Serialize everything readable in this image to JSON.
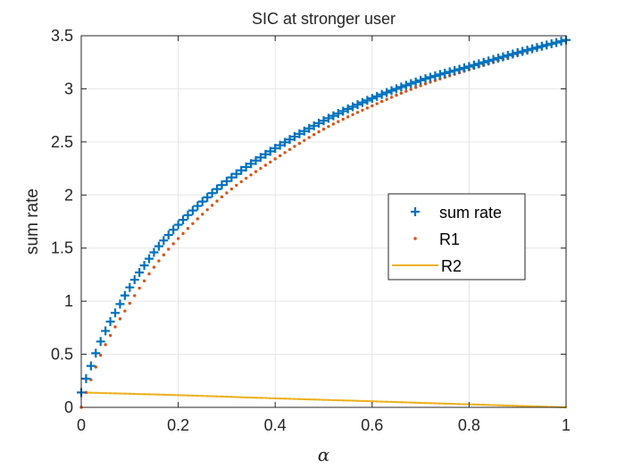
{
  "chart_data": {
    "type": "line",
    "title": "SIC at stronger user",
    "xlabel": "α",
    "ylabel": "sum rate",
    "xlim": [
      0,
      1
    ],
    "ylim": [
      0,
      3.5
    ],
    "xticks": [
      "0",
      "0.2",
      "0.4",
      "0.6",
      "0.8",
      "1"
    ],
    "yticks": [
      "0",
      "0.5",
      "1",
      "1.5",
      "2",
      "2.5",
      "3",
      "3.5"
    ],
    "grid": true,
    "legend_position": "center-right",
    "x_step": 0.01,
    "series": [
      {
        "name": "sum rate",
        "marker": "+",
        "color": "#0072BD",
        "x_points": [
          0,
          0.01,
          0.02,
          0.03,
          0.04,
          0.05,
          0.07,
          0.1,
          0.15,
          0.2,
          0.3,
          0.4,
          0.5,
          0.6,
          0.7,
          0.8,
          0.9,
          1.0
        ],
        "y_points": [
          0.14,
          0.27,
          0.39,
          0.51,
          0.62,
          0.72,
          0.89,
          1.13,
          1.46,
          1.72,
          2.13,
          2.44,
          2.7,
          2.91,
          3.08,
          3.21,
          3.34,
          3.46
        ]
      },
      {
        "name": "R1",
        "marker": ".",
        "color": "#D95319",
        "x_points": [
          0,
          0.01,
          0.02,
          0.03,
          0.05,
          0.1,
          0.15,
          0.2,
          0.3,
          0.4,
          0.5,
          0.6,
          0.7,
          0.8,
          0.9,
          1.0
        ],
        "y_points": [
          0.0,
          0.14,
          0.26,
          0.38,
          0.59,
          0.98,
          1.32,
          1.59,
          2.02,
          2.34,
          2.62,
          2.84,
          3.03,
          3.18,
          3.32,
          3.46
        ]
      },
      {
        "name": "R2",
        "marker": "none",
        "color": "#EDB120",
        "x_points": [
          0,
          0.2,
          0.4,
          0.6,
          0.8,
          1.0
        ],
        "y_points": [
          0.14,
          0.115,
          0.085,
          0.057,
          0.028,
          0.0
        ]
      }
    ]
  }
}
